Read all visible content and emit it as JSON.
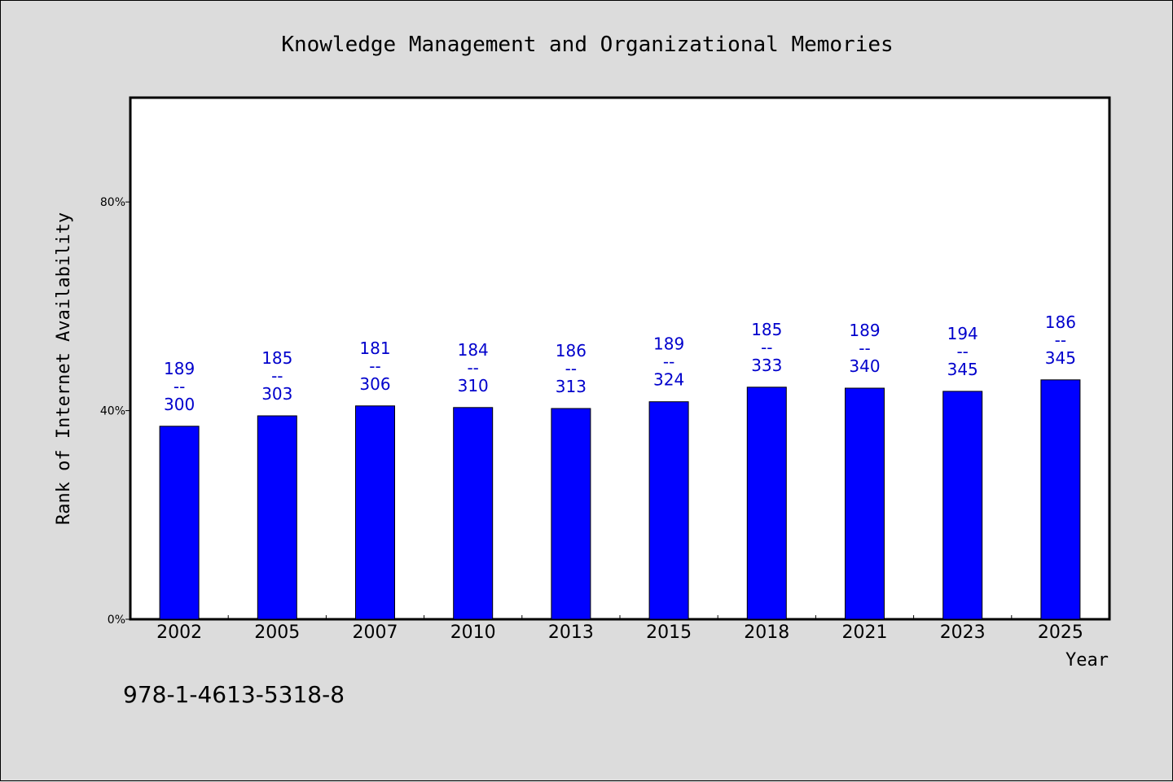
{
  "chart_data": {
    "type": "bar",
    "title": "Knowledge Management and Organizational Memories",
    "xlabel": "Year",
    "ylabel": "Rank of Internet Availability",
    "categories": [
      "2002",
      "2005",
      "2007",
      "2010",
      "2013",
      "2015",
      "2018",
      "2021",
      "2023",
      "2025"
    ],
    "values": [
      37,
      39,
      40.9,
      40.6,
      40.4,
      41.7,
      44.5,
      44.3,
      43.7,
      45.9
    ],
    "bar_labels": [
      [
        "189",
        "--",
        "300"
      ],
      [
        "185",
        "--",
        "303"
      ],
      [
        "181",
        "--",
        "306"
      ],
      [
        "184",
        "--",
        "310"
      ],
      [
        "186",
        "--",
        "313"
      ],
      [
        "189",
        "--",
        "324"
      ],
      [
        "185",
        "--",
        "333"
      ],
      [
        "189",
        "--",
        "340"
      ],
      [
        "194",
        "--",
        "345"
      ],
      [
        "186",
        "--",
        "345"
      ]
    ],
    "ylim": [
      0,
      100
    ],
    "yticks": [
      0,
      40,
      80
    ],
    "ytick_labels": [
      "0%",
      "40%",
      "80%"
    ],
    "grid": false,
    "bar_color": "#0000ff",
    "label_color": "#0000cc",
    "background_color": "#dcdcdc",
    "plot_background_color": "#ffffff"
  },
  "footer": {
    "isbn": "978-1-4613-5318-8"
  }
}
